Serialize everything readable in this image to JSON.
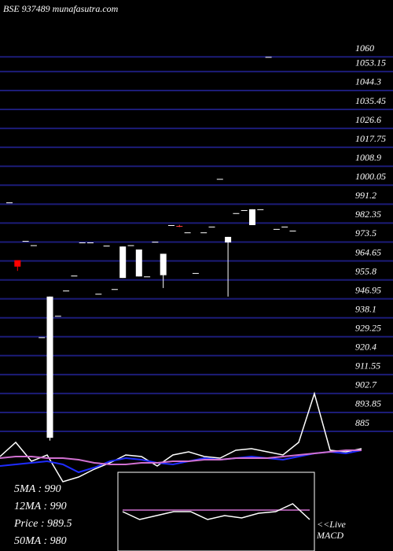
{
  "chart_data": [
    {
      "type": "candlestick",
      "title": "BSE 937489 munafasutra.com",
      "open": [
        992,
        965,
        974,
        972,
        929,
        882,
        939,
        950.8,
        957.8,
        973.3,
        973.3,
        949.3,
        971.8,
        951.5,
        971.4,
        972,
        970,
        957.4,
        973.6,
        968,
        981.4,
        981,
        978,
        959,
        978,
        980.7,
        1003,
        973.3,
        987,
        988.4,
        981.4,
        988.8,
        1060,
        979.6,
        980.7,
        978.8
      ],
      "high": [
        992,
        965,
        974,
        972,
        929,
        948,
        939,
        950.8,
        957.8,
        973.3,
        973.3,
        949.3,
        971.8,
        951.5,
        971.4,
        972,
        970,
        957.4,
        973.6,
        968,
        981.4,
        981.5,
        978,
        959,
        978,
        980.7,
        1003,
        975.9,
        987,
        988.4,
        988.8,
        988.8,
        1060,
        979.6,
        980.7,
        978.8
      ],
      "low": [
        992,
        960,
        974,
        972,
        929,
        880.7,
        939,
        950.8,
        957.8,
        973.3,
        973.3,
        949.3,
        971.8,
        951.5,
        956.7,
        972,
        957.4,
        957.4,
        973.6,
        952,
        981.4,
        980.5,
        978,
        959,
        978,
        980.7,
        1003,
        948,
        987,
        988.4,
        981.4,
        988.8,
        1060,
        979.6,
        980.7,
        978.8
      ],
      "close": [
        992,
        962,
        974,
        972,
        929,
        948,
        939,
        950.8,
        957.8,
        973.3,
        973.3,
        949.3,
        971.8,
        951.5,
        956.7,
        972,
        957.4,
        957.4,
        973.6,
        958,
        981.4,
        981,
        978,
        959,
        978,
        980.7,
        1003,
        975.9,
        987,
        988.4,
        988.8,
        988.8,
        1060,
        979.6,
        980.7,
        978.8
      ],
      "colors": [
        "#ffffff",
        "#ff0000",
        "#ffffff",
        "#ffffff",
        "#ffffff",
        "#ffffff",
        "#ffffff",
        "#ffffff",
        "#ffffff",
        "#ffffff",
        "#ffffff",
        "#ffffff",
        "#ffffff",
        "#ffffff",
        "#ffffff",
        "#ffffff",
        "#ffffff",
        "#ffffff",
        "#ffffff",
        "#ffffff",
        "#ffffff",
        "#ff4040",
        "#ffffff",
        "#ffffff",
        "#ffffff",
        "#ffffff",
        "#ffffff",
        "#ffffff",
        "#ffffff",
        "#ffffff",
        "#ffffff",
        "#ffffff",
        "#ffffff",
        "#ffffff",
        "#ffffff",
        "#ffffff"
      ],
      "ylim": [
        880.6,
        1086.6
      ],
      "yticks": [
        1060,
        1053.15,
        1044.3,
        1035.45,
        1026.6,
        1017.75,
        1008.9,
        1000.05,
        991.2,
        982.35,
        973.5,
        964.65,
        955.8,
        946.95,
        938.1,
        929.25,
        920.4,
        911.55,
        902.7,
        893.85,
        885
      ],
      "grid": true,
      "grid_color": "#1c1c78",
      "annotations": [
        "5MA : 990",
        "12MA : 990",
        "Price  : 989.5",
        "50MA : 980"
      ]
    },
    {
      "type": "line",
      "ylim": [
        -20,
        110
      ],
      "series": [
        {
          "color": "#ffffff",
          "values": [
            20,
            38,
            14,
            22,
            -12,
            -6,
            4,
            12,
            22,
            20,
            8,
            22,
            26,
            20,
            18,
            28,
            30,
            26,
            22,
            38,
            100,
            28,
            26,
            30
          ]
        },
        {
          "color": "#1e2cff",
          "values": [
            8,
            10,
            12,
            14,
            10,
            0,
            6,
            14,
            18,
            16,
            12,
            10,
            14,
            18,
            16,
            18,
            20,
            18,
            16,
            20,
            24,
            26,
            24,
            28
          ]
        },
        {
          "color": "#d070d0",
          "values": [
            18,
            20,
            20,
            18,
            18,
            16,
            12,
            10,
            10,
            12,
            12,
            14,
            14,
            16,
            16,
            18,
            18,
            18,
            20,
            22,
            24,
            26,
            28,
            28
          ]
        }
      ]
    },
    {
      "type": "macd",
      "ylim": [
        0,
        100
      ],
      "series": [
        {
          "color": "#d070d0",
          "values": [
            52,
            52,
            52,
            52,
            52,
            52,
            52,
            52,
            52,
            52,
            52,
            52
          ]
        },
        {
          "color": "#ffffff",
          "values": [
            50,
            40,
            45,
            50,
            50,
            40,
            45,
            42,
            48,
            50,
            60,
            40
          ]
        }
      ],
      "annotations": [
        "<<Live",
        "MACD"
      ]
    }
  ]
}
